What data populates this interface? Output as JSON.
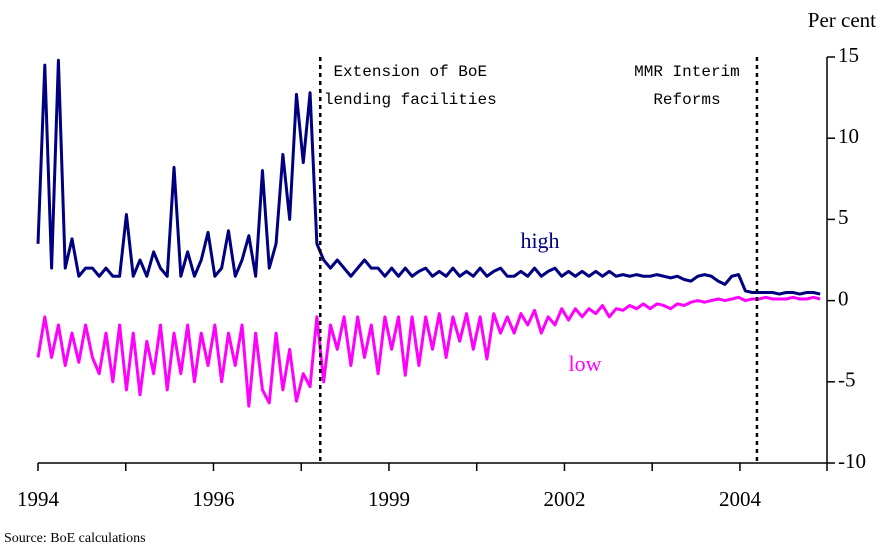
{
  "chart_data": {
    "type": "line",
    "y_label": "Per cent",
    "source": "Source: BoE calculations",
    "xlim": [
      1994,
      2005.6
    ],
    "xticks": [
      {
        "value": 1994,
        "label": "1994"
      },
      {
        "value": 1996.58,
        "label": "1996"
      },
      {
        "value": 1999.16,
        "label": "1999"
      },
      {
        "value": 2001.74,
        "label": "2002"
      },
      {
        "value": 2004.32,
        "label": "2004"
      }
    ],
    "xminor_ticks": [
      1995.29,
      1997.87,
      2000.45,
      2003.03,
      2005.6
    ],
    "ylim": [
      -10,
      15
    ],
    "yticks": [
      -10,
      -5,
      0,
      5,
      10,
      15
    ],
    "annotations": [
      {
        "x": 1998.15,
        "lines": [
          "Extension of BoE",
          "lending facilities"
        ]
      },
      {
        "x": 2004.57,
        "lines": [
          "MMR Interim",
          "Reforms"
        ]
      }
    ],
    "x": [
      1994.0,
      1994.1,
      1994.2,
      1994.3,
      1994.4,
      1994.5,
      1994.6,
      1994.7,
      1994.8,
      1994.9,
      1995.0,
      1995.1,
      1995.2,
      1995.3,
      1995.4,
      1995.5,
      1995.6,
      1995.7,
      1995.8,
      1995.9,
      1996.0,
      1996.1,
      1996.2,
      1996.3,
      1996.4,
      1996.5,
      1996.6,
      1996.7,
      1996.8,
      1996.9,
      1997.0,
      1997.1,
      1997.2,
      1997.3,
      1997.4,
      1997.5,
      1997.6,
      1997.7,
      1997.8,
      1997.9,
      1998.0,
      1998.1,
      1998.2,
      1998.3,
      1998.4,
      1998.5,
      1998.6,
      1998.7,
      1998.8,
      1998.9,
      1999.0,
      1999.1,
      1999.2,
      1999.3,
      1999.4,
      1999.5,
      1999.6,
      1999.7,
      1999.8,
      1999.9,
      2000.0,
      2000.1,
      2000.2,
      2000.3,
      2000.4,
      2000.5,
      2000.6,
      2000.7,
      2000.8,
      2000.9,
      2001.0,
      2001.1,
      2001.2,
      2001.3,
      2001.4,
      2001.5,
      2001.6,
      2001.7,
      2001.8,
      2001.9,
      2002.0,
      2002.1,
      2002.2,
      2002.3,
      2002.4,
      2002.5,
      2002.6,
      2002.7,
      2002.8,
      2002.9,
      2003.0,
      2003.1,
      2003.2,
      2003.3,
      2003.4,
      2003.5,
      2003.6,
      2003.7,
      2003.8,
      2003.9,
      2004.0,
      2004.1,
      2004.2,
      2004.3,
      2004.4,
      2004.5,
      2004.6,
      2004.7,
      2004.8,
      2004.9,
      2005.0,
      2005.1,
      2005.2,
      2005.3,
      2005.4,
      2005.5
    ],
    "series": [
      {
        "name": "high",
        "color": "#000080",
        "values": [
          3.5,
          14.5,
          2,
          14.8,
          2,
          3.8,
          1.5,
          2,
          2,
          1.5,
          2,
          1.5,
          1.5,
          5.3,
          1.5,
          2.5,
          1.5,
          3,
          2,
          1.5,
          8.2,
          1.5,
          3,
          1.5,
          2.5,
          4.2,
          1.5,
          2,
          4.3,
          1.5,
          2.5,
          4,
          1.5,
          8,
          2,
          3.5,
          9,
          5,
          12.7,
          8.5,
          12.8,
          3.5,
          2.5,
          2,
          2.5,
          2,
          1.5,
          2,
          2.5,
          2,
          2,
          1.5,
          2,
          1.5,
          2,
          1.5,
          1.8,
          2,
          1.5,
          1.8,
          1.5,
          2,
          1.5,
          1.8,
          1.5,
          2,
          1.5,
          1.8,
          2,
          1.5,
          1.5,
          1.8,
          1.5,
          2,
          1.5,
          1.8,
          2,
          1.5,
          1.8,
          1.5,
          1.8,
          1.5,
          1.8,
          1.5,
          1.8,
          1.5,
          1.6,
          1.5,
          1.6,
          1.5,
          1.5,
          1.6,
          1.5,
          1.4,
          1.5,
          1.3,
          1.2,
          1.5,
          1.6,
          1.5,
          1.2,
          1,
          1.5,
          1.6,
          0.6,
          0.5,
          0.5,
          0.5,
          0.5,
          0.4,
          0.5,
          0.5,
          0.4,
          0.5,
          0.5,
          0.4
        ]
      },
      {
        "name": "low",
        "color": "#ff00ff",
        "values": [
          -3.5,
          -1,
          -3.5,
          -1.5,
          -4,
          -2,
          -3.8,
          -1.5,
          -3.5,
          -4.5,
          -2,
          -5,
          -1.5,
          -5.5,
          -2,
          -5.8,
          -2.5,
          -4.5,
          -1.5,
          -5.5,
          -2,
          -4.5,
          -1.5,
          -5,
          -2,
          -4,
          -1.5,
          -5,
          -2,
          -4,
          -1.5,
          -6.5,
          -2,
          -5.5,
          -6.3,
          -2,
          -5.5,
          -3,
          -6.2,
          -4.5,
          -5.3,
          -1,
          -5,
          -1.5,
          -3,
          -1,
          -4,
          -1,
          -3.5,
          -1.5,
          -4.5,
          -1,
          -3,
          -1,
          -4.6,
          -1,
          -4,
          -1,
          -3,
          -0.8,
          -3.5,
          -1,
          -2.5,
          -0.8,
          -3,
          -1,
          -3.6,
          -0.8,
          -2,
          -1,
          -2,
          -0.8,
          -1.5,
          -0.6,
          -2,
          -1,
          -1.5,
          -0.5,
          -1.2,
          -0.5,
          -1,
          -0.5,
          -0.8,
          -0.3,
          -1,
          -0.5,
          -0.6,
          -0.3,
          -0.5,
          -0.2,
          -0.5,
          -0.2,
          -0.3,
          -0.5,
          -0.2,
          -0.3,
          -0.1,
          0,
          -0.1,
          0,
          0.1,
          0,
          0.1,
          0.2,
          0,
          0.1,
          0.1,
          0.2,
          0.1,
          0.1,
          0.1,
          0.2,
          0.1,
          0.1,
          0.2,
          0.1
        ]
      }
    ]
  }
}
